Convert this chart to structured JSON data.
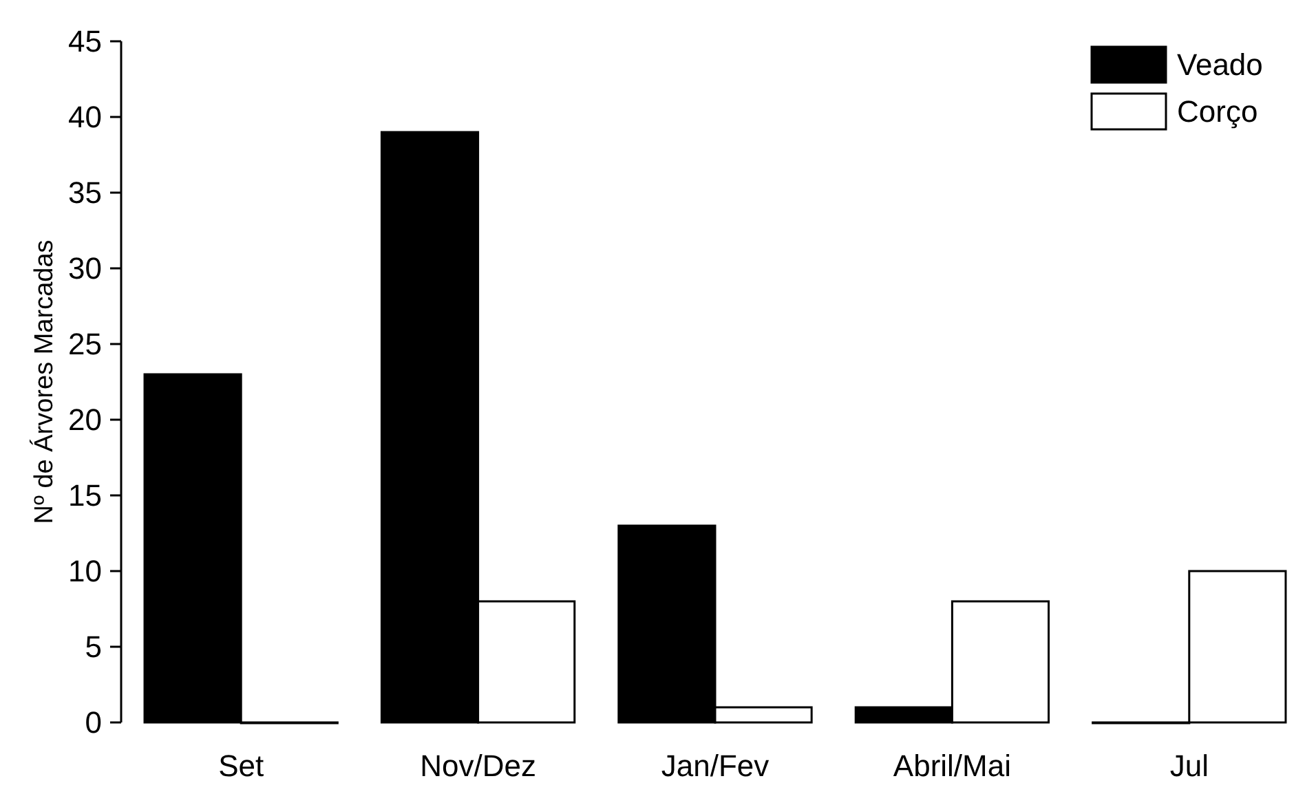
{
  "chart_data": {
    "type": "bar",
    "ylabel": "Nº de Árvores Marcadas",
    "categories": [
      "Set",
      "Nov/Dez",
      "Jan/Fev",
      "Abril/Mai",
      "Jul"
    ],
    "series": [
      {
        "name": "Veado",
        "color": "#000000",
        "values": [
          23,
          39,
          13,
          1,
          0
        ]
      },
      {
        "name": "Corço",
        "color": "#ffffff",
        "values": [
          0,
          8,
          1,
          8,
          10
        ]
      }
    ],
    "ylim": [
      0,
      45
    ],
    "yticks": [
      0,
      5,
      10,
      15,
      20,
      25,
      30,
      35,
      40,
      45
    ],
    "grid": false,
    "legend": "top right"
  }
}
